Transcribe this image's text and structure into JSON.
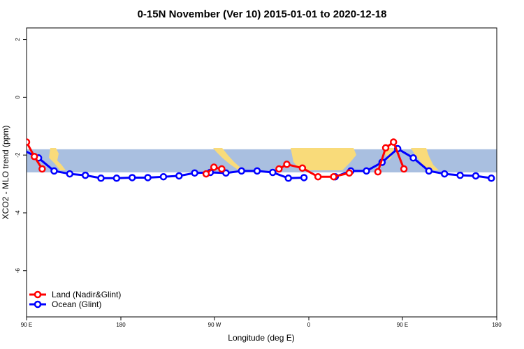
{
  "chart_data": {
    "type": "line",
    "title": "0-15N November (Ver 10)   2015-01-01 to 2020-12-18",
    "xlabel": "Longitude (deg E)",
    "ylabel": "XCO2 - MLO trend (ppm)",
    "xlim": [
      90,
      450
    ],
    "ylim": [
      -7.6,
      2.4
    ],
    "xticks": [
      {
        "value": 90,
        "label": "90 E"
      },
      {
        "value": 180,
        "label": "180"
      },
      {
        "value": 270,
        "label": "90 W"
      },
      {
        "value": 360,
        "label": "0"
      },
      {
        "value": 450,
        "label": "90 E"
      },
      {
        "value": 540,
        "label": "180"
      }
    ],
    "yticks": [
      {
        "value": 2,
        "label": "2"
      },
      {
        "value": 0,
        "label": "0"
      },
      {
        "value": -2,
        "label": "-2"
      },
      {
        "value": -4,
        "label": "-4"
      },
      {
        "value": -6,
        "label": "-6"
      }
    ],
    "background_band": {
      "ymin": -2.6,
      "ymax": -1.8,
      "color": "#a9bfe0",
      "land_color": "#f9db7a"
    },
    "legend": {
      "position": "bottom-left"
    },
    "series": [
      {
        "name": "Land (Nadir&Glint)",
        "color": "#ff0000",
        "segments": [
          {
            "x": [
              102.5,
              110,
              117.5
            ],
            "y": [
              -1.55,
              -2.05,
              -2.48
            ]
          },
          {
            "x": [
              275,
              282.5,
              290
            ],
            "y": [
              -2.65,
              -2.42,
              -2.48
            ]
          },
          {
            "x": [
              345,
              352.5,
              367.5,
              382.5,
              397.5,
              412.5
            ],
            "y": [
              -2.48,
              -2.32,
              -2.45,
              -2.75,
              -2.75,
              -2.62
            ]
          },
          {
            "x": [
              440,
              447.5,
              455,
              465
            ],
            "y": [
              -2.58,
              -1.75,
              -1.55,
              -2.48
            ]
          }
        ]
      },
      {
        "name": "Ocean (Glint)",
        "color": "#0000ff",
        "segments": [
          {
            "x": [
              97,
              114,
              129,
              144,
              159,
              174,
              189,
              204,
              219,
              234,
              249,
              264,
              279,
              294,
              309,
              324,
              339,
              354,
              369
            ],
            "y": [
              -1.78,
              -2.1,
              -2.55,
              -2.65,
              -2.7,
              -2.8,
              -2.8,
              -2.78,
              -2.78,
              -2.75,
              -2.72,
              -2.62,
              -2.6,
              -2.62,
              -2.55,
              -2.55,
              -2.6,
              -2.8,
              -2.78
            ]
          },
          {
            "x": [
              399,
              414,
              429,
              444,
              459,
              474,
              489,
              504,
              519,
              534,
              549
            ],
            "y": [
              -2.75,
              -2.55,
              -2.55,
              -2.25,
              -1.78,
              -2.1,
              -2.55,
              -2.65,
              -2.7,
              -2.72,
              -2.8
            ]
          }
        ]
      }
    ]
  }
}
